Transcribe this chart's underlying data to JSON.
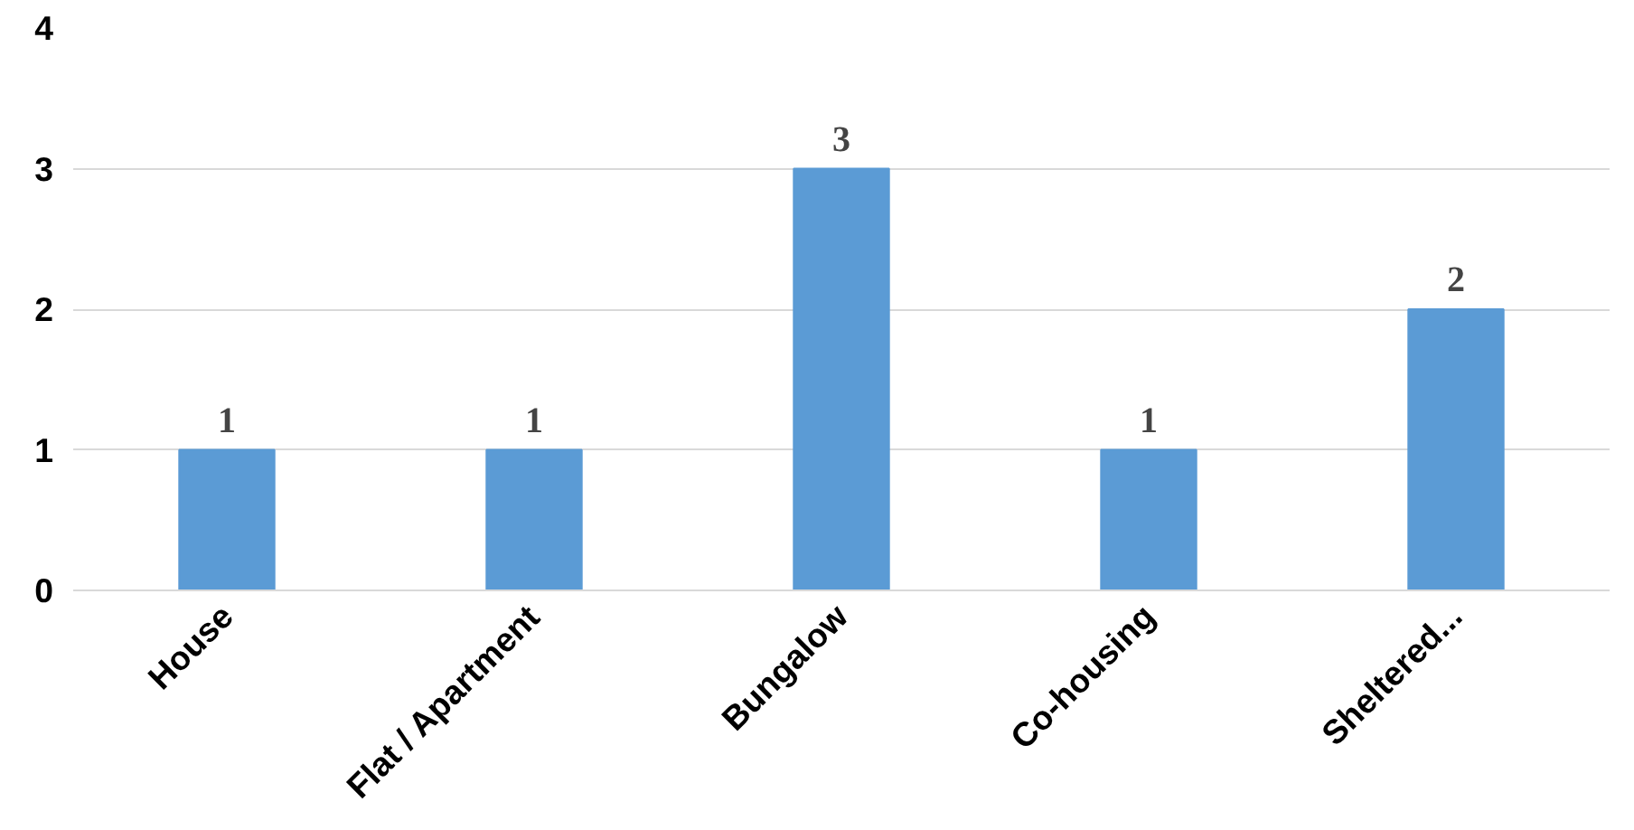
{
  "chart_data": {
    "type": "bar",
    "categories": [
      "House",
      "Flat / Apartment",
      "Bungalow",
      "Co-housing",
      "Sheltered..."
    ],
    "values": [
      1,
      1,
      3,
      1,
      2
    ],
    "color": "#5b9bd5",
    "ylim": [
      0,
      4
    ],
    "yticks": [
      0,
      1,
      2,
      3,
      4
    ],
    "grid": "y",
    "data_labels": true
  }
}
